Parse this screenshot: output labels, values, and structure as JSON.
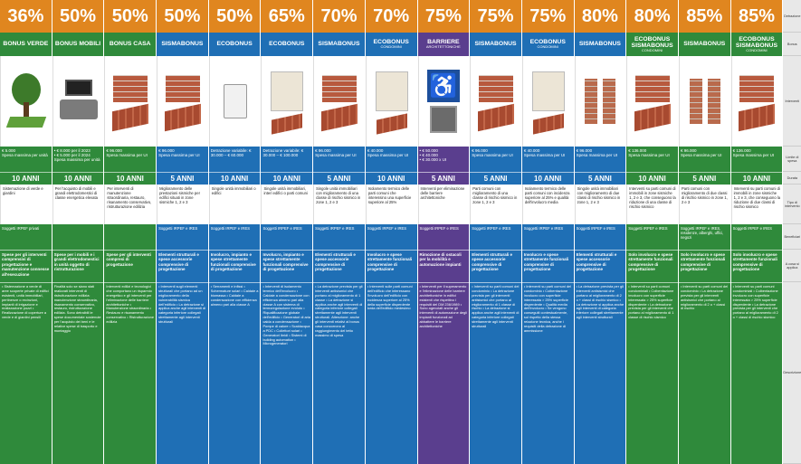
{
  "columns": [
    {
      "pct": "36%",
      "name": "BONUS VERDE",
      "sub": "",
      "color": "#2f8a3b",
      "icon": "tree-icon",
      "limit": "€ 5.000\nSpesa massima per unità",
      "years": "10 ANNI",
      "interv": "Sistemazione di verde e giardini",
      "benef": "Soggetti IRPEF privati",
      "scope": "Spese per gli interventi comprensivi di progettazione e manutenzione connesse all'esecuzione",
      "desc": "• Sistemazione a verde di aree scoperte private di edifici esistenti, unità immobiliari, pertinenze o recinzioni, impianti di irrigazione e realizzazione pozzi • Realizzazione di coperture a verde e di giardini pensili"
    },
    {
      "pct": "50%",
      "name": "BONUS MOBILI",
      "sub": "",
      "color": "#2f8a3b",
      "icon": "sofa-icon",
      "limit": "• € 8.000 per il 2023\n• € 5.000 per il 2024\nSpesa massima per unità",
      "years": "10 ANNI",
      "interv": "Per l'acquisto di mobili e grandi elettrodomestici di classe energetica elevata",
      "benef": "",
      "scope": "Spese per i mobili e i grandi elettrodomestici in unità oggetto di ristrutturazione",
      "desc": "Finalità solo se siano stati realizzati interventi di ristrutturazione edilizia: manutenzione straordinaria, risanamento conservativo, restauro, ristrutturazione edilizia. Sono detraibili le spese documentate sostenute per l'acquisto dei beni e le relative spese di trasporto e montaggio"
    },
    {
      "pct": "50%",
      "name": "BONUS CASA",
      "sub": "",
      "color": "#2f8a3b",
      "icon": "house-icon",
      "limit": "€ 96.000\nSpesa massima per UI",
      "years": "10 ANNI",
      "interv": "Per interventi di manutenzione straordinaria, restauro, risanamento conservativo, ristrutturazione edilizia",
      "benef": "",
      "scope": "Spese per gli interventi compresi di progettazione",
      "desc": "Interventi edilizi e tecnologici che comportano un risparmio energetico e gli interventi per l'eliminazione delle barriere architettoniche • Manutenzione straordinaria • Restauro e risanamento conservativo • Ristrutturazione edilizia"
    },
    {
      "pct": "50%",
      "name": "SISMABONUS",
      "sub": "",
      "color": "#1f6fb5",
      "icon": "wall-icon",
      "limit": "€ 96.000\nSpesa massima per UI",
      "years": "5 ANNI",
      "interv": "Miglioramento delle prestazioni sismiche per edifici situati in zone sismiche 1, 2 e 3",
      "benef": "Soggetti IRPEF e IRES",
      "scope": "Elementi strutturali e spese accessorie comprensive di progettazione",
      "desc": "• Interventi sugli elementi strutturali che portano ad un miglioramento della vulnerabilità sismica dell'edificio • La detrazione si applica anche agli interventi di categoria inferiore collegati strettamente agli interventi strutturali"
    },
    {
      "pct": "50%",
      "name": "ECOBONUS",
      "sub": "",
      "color": "#1f6fb5",
      "icon": "boiler-icon",
      "limit": "Detrazione variabile: € 30.000 – € 60.000",
      "years": "10 ANNI",
      "interv": "Singole unità immobiliari o edifici",
      "benef": "Soggetti IRPEF e IRES",
      "scope": "Involucro, impianto e spese strettamente funzionali comprensive di progettazione",
      "desc": "• Serramenti e infissi • Schermature solari • Caldaie a biomassa • Caldaie a condensazione con efficienza almeno pari alla classe A"
    },
    {
      "pct": "65%",
      "name": "ECOBONUS",
      "sub": "",
      "color": "#1f6fb5",
      "icon": "panel-icon",
      "limit": "Detrazione variabile: € 30.000 – € 100.000",
      "years": "10 ANNI",
      "interv": "Singole unità immobiliari, interi edifici o parti comuni",
      "benef": "Soggetti IRPEF e IRES",
      "scope": "Involucro, impianto e spese strettamente funzionali comprensive di progettazione",
      "desc": "• Interventi di isolamento termico dell'involucro • Caldaie a condensazione con efficienza almeno pari alla classe A con sistema di termoregolazione evoluto • Riqualificazione globale dell'edificio • Generatori di aria calda a condensazione • Pompe di calore • Scaldacqua a PDC • Collettori solari • Generatori ibridi • Sistemi di building automation • Microgeneratori"
    },
    {
      "pct": "70%",
      "name": "SISMABONUS",
      "sub": "",
      "color": "#1f6fb5",
      "icon": "wall-icon",
      "limit": "€ 96.000\nSpesa massima per UI",
      "years": "5 ANNI",
      "interv": "Singole unità immobiliari con miglioramento di una classe di rischio sismico in zone 1, 2 e 3",
      "benef": "Soggetti IRPEF e IRES",
      "scope": "Elementi strutturali e spese accessorie comprensive di progettazione",
      "desc": "• La detrazione prevista per gli interventi antisismici che portano al miglioramento di 1 classe • La detrazione si applica anche agli interventi di categoria inferiore collegati strettamente agli interventi strutturali. Attenzione: anche gli interventi relativi al bonus casa concorrono al raggiungimento del tetto massimo di spesa"
    },
    {
      "pct": "70%",
      "name": "ECOBONUS",
      "sub": "CONDOMINI",
      "color": "#1f6fb5",
      "icon": "panel-icon",
      "limit": "€ 40.000\nSpesa massima per UI",
      "years": "10 ANNI",
      "interv": "Isolamento termico delle parti comuni che interessino una superficie superiore al 25%",
      "benef": "Soggetti IRPEF e IRES",
      "scope": "Involucro e spese strettamente funzionali comprensive di progettazione",
      "desc": "• Interventi sulle parti comuni dell'edificio che interessano l'involucro dell'edificio con incidenza superiore al 25% della superficie disperdente lorda dell'edificio medesimo"
    },
    {
      "pct": "75%",
      "name": "BARRIERE",
      "sub": "ARCHITETTONICHE",
      "color": "#5a3e8e",
      "icon": "wheelchair-icon",
      "limit": "• € 50.000\n• € 40.000\n• € 30.000 x UI",
      "years": "5 ANNI",
      "interv": "Interventi per eliminazione delle barriere architettoniche",
      "benef": "Soggetti IRPEF e IRES",
      "scope": "Rimozione di ostacoli per la mobilità e automazione impianti",
      "desc": "• Interventi per il superamento e l'eliminazione delle barriere architettoniche in edifici esistenti che rispettino i requisiti del DM 236/1989 • Sono agevolati anche gli interventi di automazione degli impianti funzionali ad abbattere le barriere architettoniche"
    },
    {
      "pct": "75%",
      "name": "SISMABONUS",
      "sub": "",
      "color": "#1f6fb5",
      "icon": "wall-icon",
      "limit": "€ 96.000\nSpesa massima per UI",
      "years": "5 ANNI",
      "interv": "Parti comuni con miglioramento di una classe di rischio sismico in zone 1, 2 e 3",
      "benef": "Soggetti IRPEF e IRES",
      "scope": "Elementi strutturali e spese accessorie comprensive di progettazione",
      "desc": "• Interventi su parti comuni del condominio • La detrazione prevista per gli interventi antisismici che portano al miglioramento di 1 classe di rischio • La detrazione si applica anche agli interventi di categoria inferiore collegati strettamente agli interventi strutturali"
    },
    {
      "pct": "75%",
      "name": "ECOBONUS",
      "sub": "CONDOMINI",
      "color": "#1f6fb5",
      "icon": "panel-icon",
      "limit": "€ 40.000\nSpesa massima per UI",
      "years": "10 ANNI",
      "interv": "Isolamento termico delle parti comuni con incidenza superiore al 25% e qualità dell'involucro media",
      "benef": "Soggetti IRPEF e IRES",
      "scope": "Involucro e spese strettamente funzionali comprensive di progettazione",
      "desc": "• Interventi su parti comuni del condominio • Coibentazione involucro con superficie interessata > 25% superficie disperdente • Qualità media dell'involucro • Se vengono conseguiti contestualmente, sul rispetto della stessa relazione tecnica, anche i requisiti della detrazione di ammissione"
    },
    {
      "pct": "80%",
      "name": "SISMABONUS",
      "sub": "",
      "color": "#1f6fb5",
      "icon": "column-icon",
      "limit": "€ 96.000\nSpesa massima per UI",
      "years": "5 ANNI",
      "interv": "Singole unità immobiliari con miglioramento di due classi di rischio sismico in zone 1, 2 e 3",
      "benef": "Soggetti IRPEF e IRES",
      "scope": "Elementi strutturali e spese accessorie comprensive di progettazione",
      "desc": "• La detrazione prevista per gli interventi antisismici che portano al miglioramento di 2 o + classi di rischio sismico • La detrazione si applica anche agli interventi di categoria inferiore collegati strettamente agli interventi strutturali"
    },
    {
      "pct": "80%",
      "name": "ECOBONUS SISMABONUS",
      "sub": "CONDOMINI",
      "color": "#2f8a3b",
      "icon": "wall-icon",
      "limit": "€ 136.000\nSpesa massima per UI",
      "years": "10 ANNI",
      "interv": "Interventi su parti comuni di immobili in zone sismiche 1, 2 e 3, che conseguono la riduzione di una classe di rischio sismico",
      "benef": "Soggetti IRPEF e IRES",
      "scope": "Solo involucro e spese strettamente funzionali comprensive di progettazione",
      "desc": "• Interventi su parti comuni condominiali • Coibentazione involucro con superficie interessata > 25% superficie disperdente • La detrazione prevista per gli interventi che portano al miglioramento di 1 classe di rischio sismico"
    },
    {
      "pct": "85%",
      "name": "SISMABONUS",
      "sub": "",
      "color": "#2f8a3b",
      "icon": "column-icon",
      "limit": "€ 96.000\nSpesa massima per UI",
      "years": "5 ANNI",
      "interv": "Parti comuni con miglioramento di due classi di rischio sismico in zone 1, 2 e 3",
      "benef": "Soggetti IRPEF e IRES, residenze, alberghi, uffici, negozi",
      "scope": "Solo involucro e spese strettamente funzionali comprensive di progettazione",
      "desc": "• Interventi su parti comuni del condominio • La detrazione prevista per gli interventi antisismici che portano al miglioramento di 2 o + classi di rischio"
    },
    {
      "pct": "85%",
      "name": "ECOBONUS SISMABONUS",
      "sub": "CONDOMINI",
      "color": "#2f8a3b",
      "icon": "wall-icon",
      "limit": "€ 136.000\nSpesa massima per UI",
      "years": "10 ANNI",
      "interv": "Interventi su parti comuni di immobili in zone sismiche 1, 2 e 3, che conseguono la riduzione di due classi di rischio sismico",
      "benef": "Soggetti IRPEF e IRES",
      "scope": "Solo involucro e spese strettamente funzionali comprensive di progettazione",
      "desc": "• Interventi su parti comuni condominiali • Coibentazione involucro con superficie interessata > 25% superficie disperdente • La detrazione prevista per gli interventi che portano al miglioramento di 2 o + classi di rischio sismico"
    }
  ],
  "pct_colors": [
    "#e0861f",
    "#e0861f",
    "#e0861f",
    "#e0861f",
    "#e0861f",
    "#e0861f",
    "#e0861f",
    "#e0861f",
    "#e0861f",
    "#e0861f",
    "#e0861f",
    "#e0861f",
    "#e0861f",
    "#e0861f",
    "#e0861f"
  ],
  "row_labels": {
    "pct": "Detrazione",
    "name": "Bonus",
    "img": "Interventi",
    "limit": "Limite di spesa",
    "years": "Durata",
    "interv": "Tipo di intervento",
    "benef": "Beneficiari",
    "scope": "A cosa si applica",
    "desc": "Descrizione"
  }
}
